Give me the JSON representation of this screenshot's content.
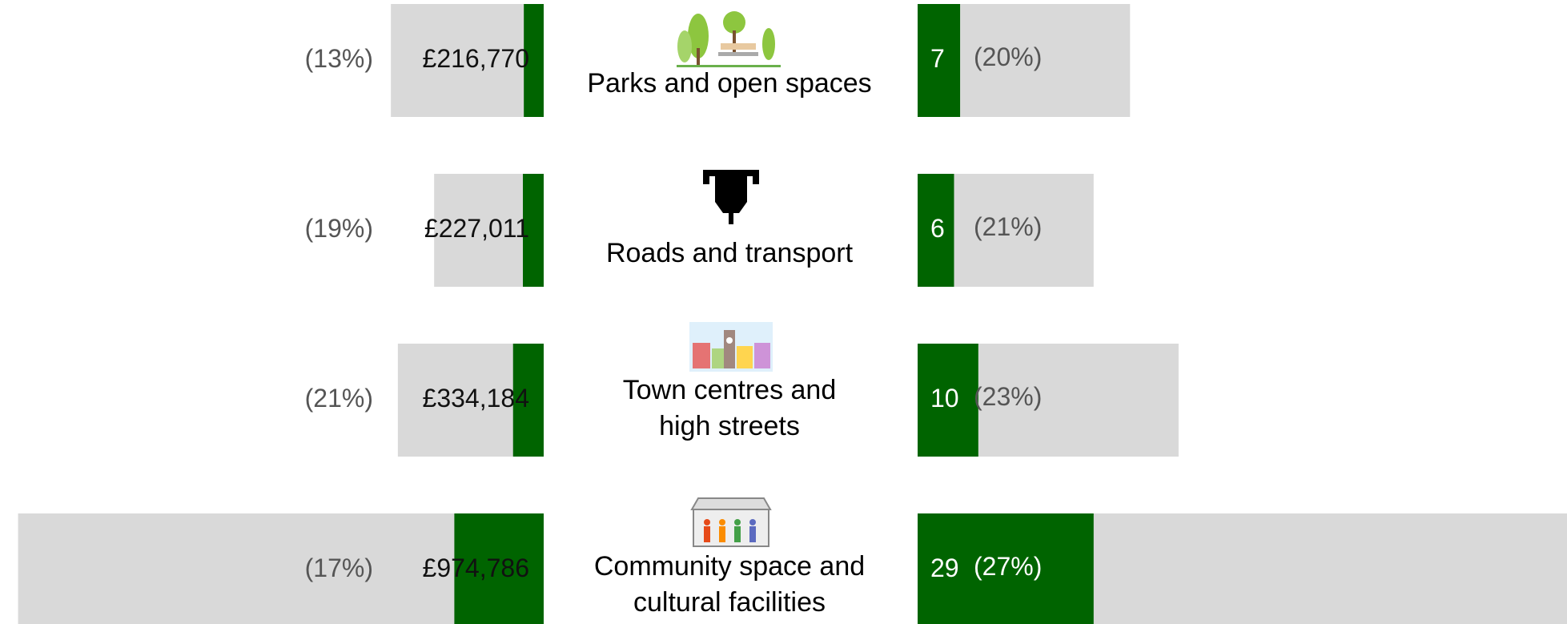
{
  "chart_data": {
    "type": "butterfly",
    "categories": [
      [
        "Parks and open spaces"
      ],
      [
        "Roads and transport"
      ],
      [
        "Town centres and",
        "high streets"
      ],
      [
        "Community space and",
        "cultural facilities"
      ]
    ],
    "funding": {
      "values": [
        216770,
        227011,
        334184,
        974786
      ],
      "value_labels": [
        "£216,770",
        "£227,011",
        "£334,184",
        "£974,786"
      ]
    },
    "funding_share": {
      "values": [
        13,
        19,
        21,
        17
      ],
      "value_labels": [
        "(13%)",
        "(19%)",
        "(21%)",
        "(17%)"
      ]
    },
    "funding_total": {
      "values": [
        1667000,
        1195000,
        1591000,
        5734000
      ]
    },
    "projects": {
      "values": [
        7,
        6,
        10,
        29
      ]
    },
    "projects_share": {
      "values": [
        20,
        21,
        23,
        27
      ],
      "value_labels": [
        "(20%)",
        "(21%)",
        "(23%)",
        "(27%)"
      ]
    },
    "projects_total": {
      "values": [
        35,
        29,
        43,
        107
      ]
    },
    "funding_xlim": [
      0,
      5800000
    ],
    "projects_xlim": [
      0,
      107
    ],
    "color": "#006400",
    "total_color": "#d9d9d9"
  }
}
